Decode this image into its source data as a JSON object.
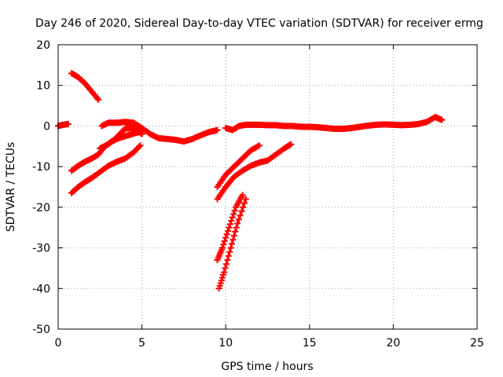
{
  "chart_data": {
    "type": "scatter",
    "title": "Day 246 of 2020, Sidereal Day-to-day VTEC variation (SDTVAR) for receiver ermg",
    "xlabel": "GPS time / hours",
    "ylabel": "SDTVAR / TECUs",
    "xlim": [
      0,
      25
    ],
    "ylim": [
      -50,
      20
    ],
    "xticks": [
      0,
      5,
      10,
      15,
      20,
      25
    ],
    "yticks": [
      -50,
      -40,
      -30,
      -20,
      -10,
      0,
      10,
      20
    ],
    "grid": true,
    "marker": "+",
    "series_color": "#ff0000",
    "tracks": [
      {
        "x": [
          0,
          0.3,
          0.6
        ],
        "y": [
          0,
          0.3,
          0.5
        ]
      },
      {
        "x": [
          0.8,
          1.2,
          1.6,
          2.0,
          2.4
        ],
        "y": [
          13,
          12,
          10.5,
          8.5,
          6.5
        ]
      },
      {
        "x": [
          0.8,
          1.2,
          1.6,
          2.0,
          2.4,
          2.8,
          3.2,
          3.6,
          4.0,
          4.4,
          4.8
        ],
        "y": [
          -11,
          -9.8,
          -8.8,
          -8.0,
          -7.0,
          -5.0,
          -3.8,
          -3.0,
          -2.5,
          -2.0,
          -1.5
        ]
      },
      {
        "x": [
          0.8,
          1.2,
          1.6,
          2.0,
          2.5,
          3.0,
          3.5,
          4.0,
          4.5,
          4.9
        ],
        "y": [
          -16.5,
          -15,
          -13.8,
          -12.8,
          -11.3,
          -9.8,
          -8.8,
          -8.0,
          -6.5,
          -4.8
        ]
      },
      {
        "x": [
          2.6,
          3.0,
          3.5,
          4.0,
          4.5,
          5.0,
          5.5,
          6.0,
          6.5,
          7.0,
          7.5,
          8.0,
          8.5,
          9.0,
          9.5
        ],
        "y": [
          0,
          0.8,
          0.8,
          1.0,
          0.8,
          -0.5,
          -2.0,
          -3.0,
          -3.2,
          -3.4,
          -3.8,
          -3.2,
          -2.3,
          -1.5,
          -1.0
        ]
      },
      {
        "x": [
          2.5,
          3.0,
          3.5,
          4.0,
          4.5,
          5.0
        ],
        "y": [
          -5.5,
          -4.5,
          -2.8,
          -0.6,
          -0.5,
          -2.0
        ]
      },
      {
        "x": [
          10.0,
          10.4,
          10.8,
          11.2,
          11.6,
          12.0,
          12.5,
          13.0,
          13.5,
          14.0,
          14.5,
          15.0,
          15.5,
          16.0,
          16.5,
          17.0,
          17.5,
          18.0,
          18.5,
          19.0,
          19.5,
          20.0,
          20.5,
          21.0,
          21.5,
          22.0,
          22.5,
          22.9
        ],
        "y": [
          -0.5,
          -1.0,
          0.0,
          0.3,
          0.3,
          0.3,
          0.2,
          0.2,
          0.0,
          0.0,
          -0.2,
          -0.2,
          -0.3,
          -0.5,
          -0.7,
          -0.7,
          -0.5,
          -0.2,
          0.1,
          0.3,
          0.4,
          0.3,
          0.2,
          0.3,
          0.5,
          1.0,
          2.2,
          1.5
        ]
      },
      {
        "x": [
          9.5,
          10.0,
          10.5,
          11.0,
          11.5,
          12.0
        ],
        "y": [
          -15,
          -12,
          -10,
          -8,
          -6,
          -4.8
        ]
      },
      {
        "x": [
          9.5,
          10.0,
          10.5,
          11.0,
          11.5,
          12.0,
          12.5,
          13.0,
          13.5,
          13.9
        ],
        "y": [
          -18,
          -15,
          -12.5,
          -11,
          -9.8,
          -9.0,
          -8.5,
          -7.0,
          -5.5,
          -4.5
        ]
      },
      {
        "x": [
          9.5,
          9.8,
          10.2,
          10.6,
          11.0
        ],
        "y": [
          -33,
          -30,
          -25,
          -20,
          -17
        ]
      },
      {
        "x": [
          9.6,
          9.9,
          10.3,
          10.7,
          11.2
        ],
        "y": [
          -40,
          -36,
          -30,
          -24,
          -18
        ]
      }
    ]
  }
}
